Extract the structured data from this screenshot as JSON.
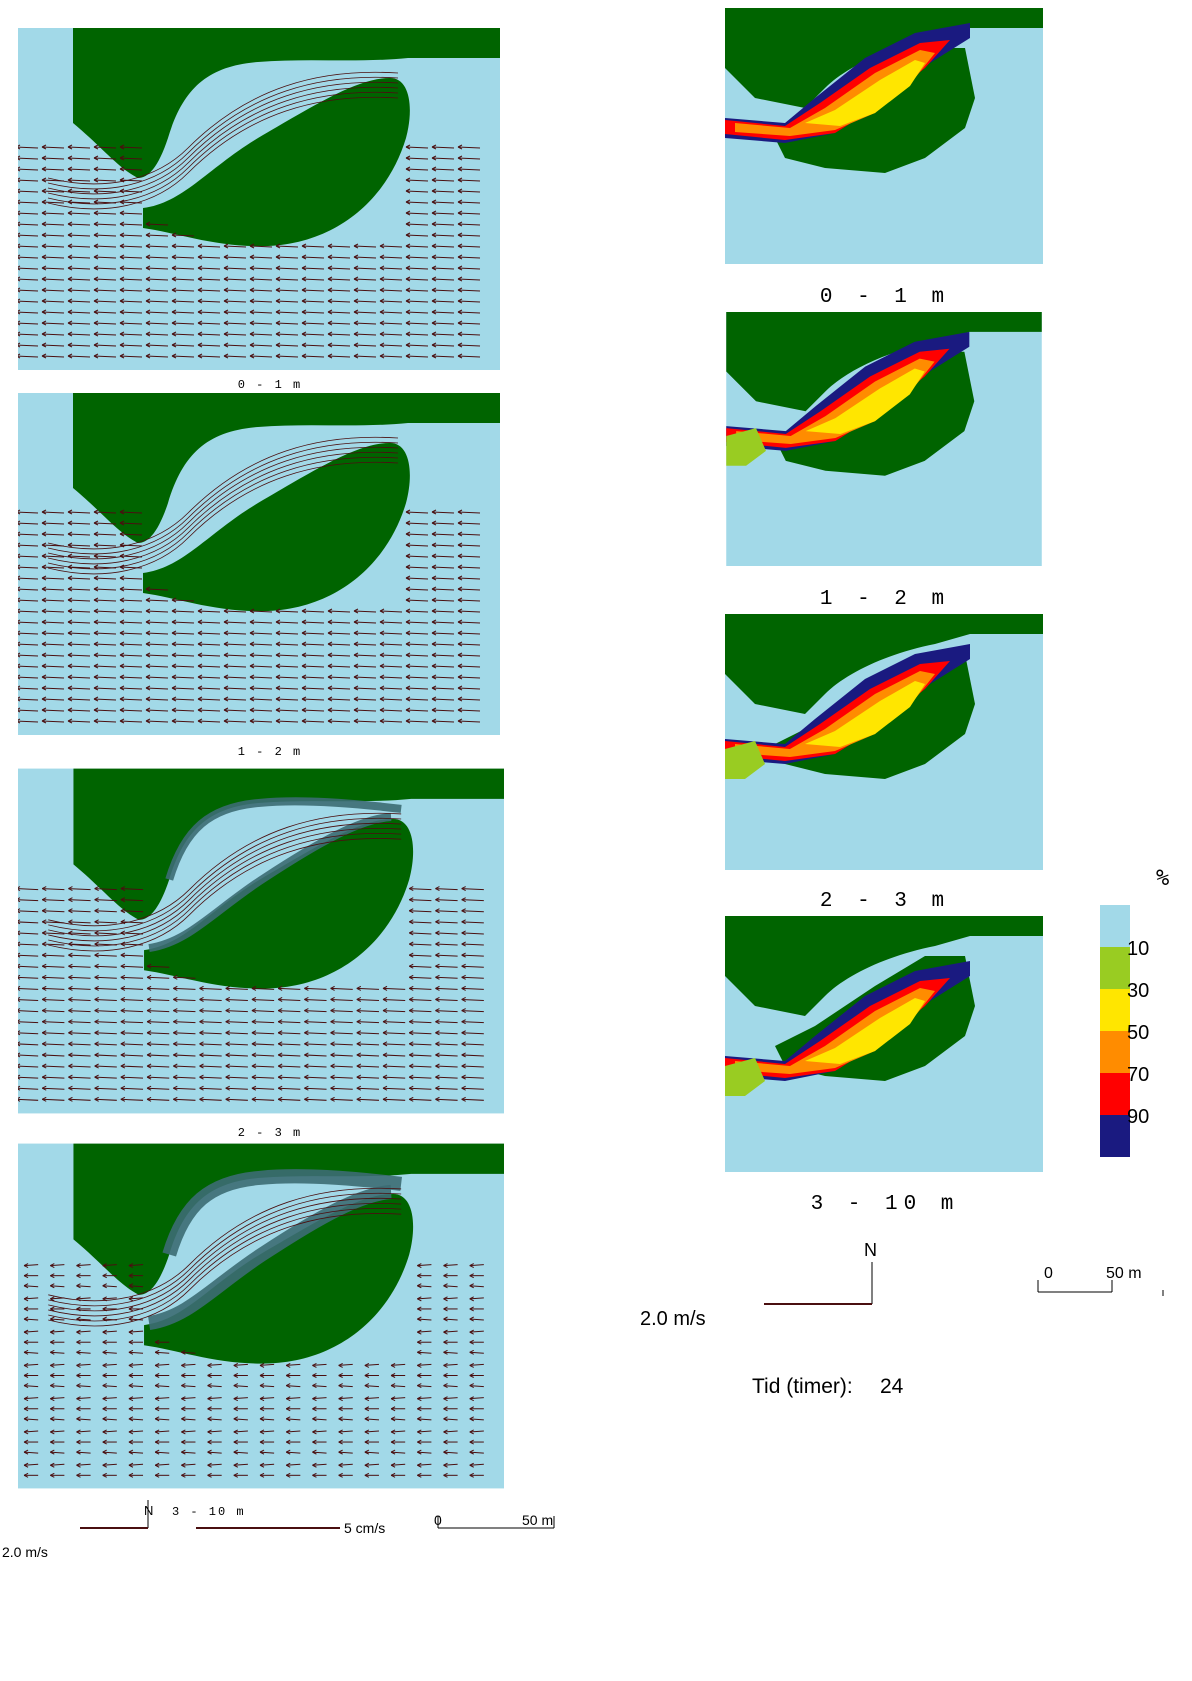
{
  "colors": {
    "water": "#a2d9e8",
    "land": "#006400",
    "arrow": "#4a0f10",
    "dark_ring": "#3c6b73",
    "c10": "#a2d9e8",
    "c30": "#99cc22",
    "c50": "#ffe600",
    "c70": "#ff8c00",
    "c90": "#ff0000",
    "c100": "#1a1a80"
  },
  "left_panels": [
    {
      "label": "0 - 1 m"
    },
    {
      "label": "1 - 2 m"
    },
    {
      "label": "2 - 3 m"
    },
    {
      "label": "3 - 10 m"
    }
  ],
  "right_panels": [
    {
      "label": "0 - 1 m"
    },
    {
      "label": "1 - 2 m"
    },
    {
      "label": "2 - 3 m"
    },
    {
      "label": "3 - 10 m"
    }
  ],
  "legend": {
    "unit": "%",
    "classes": [
      {
        "value": "10",
        "color": "#a2d9e8"
      },
      {
        "value": "30",
        "color": "#99cc22"
      },
      {
        "value": "50",
        "color": "#ffe600"
      },
      {
        "value": "70",
        "color": "#ff8c00"
      },
      {
        "value": "90",
        "color": "#ff0000"
      },
      {
        "value": "",
        "color": "#1a1a80"
      }
    ]
  },
  "left_footer": {
    "north": "N",
    "vector_scale_a": "2.0 m/s",
    "vector_scale_b": "5 cm/s",
    "distance_0": "0",
    "distance_50": "50 m"
  },
  "right_footer": {
    "north": "N",
    "vector_scale": "2.0 m/s",
    "distance_0": "0",
    "distance_50": "50 m",
    "time_label": "Tid (timer):",
    "time_value": "24"
  }
}
